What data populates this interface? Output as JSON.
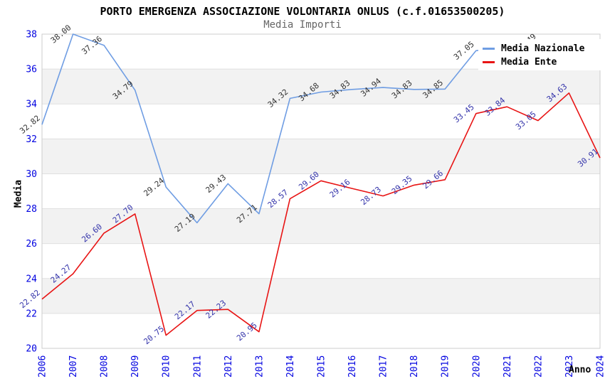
{
  "title": "PORTO EMERGENZA ASSOCIAZIONE VOLONTARIA ONLUS (c.f.01653500205)",
  "subtitle": "Media Importi",
  "chart_data": {
    "type": "line",
    "categories": [
      "2006",
      "2007",
      "2008",
      "2009",
      "2010",
      "2011",
      "2012",
      "2013",
      "2014",
      "2015",
      "2016",
      "2017",
      "2018",
      "2019",
      "2020",
      "2021",
      "2022",
      "2023",
      "2024"
    ],
    "series": [
      {
        "name": "Media Nazionale",
        "color": "#6f9de3",
        "label_color": "#333333",
        "values": [
          32.82,
          38.0,
          37.36,
          34.79,
          29.24,
          27.19,
          29.43,
          27.71,
          34.32,
          34.68,
          34.83,
          34.94,
          34.83,
          34.85,
          37.05,
          null,
          37.49,
          null,
          null
        ]
      },
      {
        "name": "Media Ente",
        "color": "#e81414",
        "label_color": "#3333aa",
        "values": [
          22.82,
          24.27,
          26.6,
          27.7,
          20.75,
          22.17,
          22.23,
          20.95,
          28.57,
          29.6,
          29.16,
          28.73,
          29.35,
          29.66,
          33.45,
          33.84,
          33.05,
          34.63,
          30.91
        ]
      }
    ],
    "xlabel": "Anno",
    "ylabel": "Media",
    "ylim": [
      20,
      38
    ],
    "ytick_step": 2,
    "grid": true,
    "legend_position": "top-right",
    "colors": {
      "tick_label": "#0000e0",
      "band_fill": "#f2f2f2",
      "grid_line": "#e0e0e0",
      "plot_border": "#cccccc",
      "axis_line": "#999999",
      "subtitle": "#666666"
    }
  }
}
